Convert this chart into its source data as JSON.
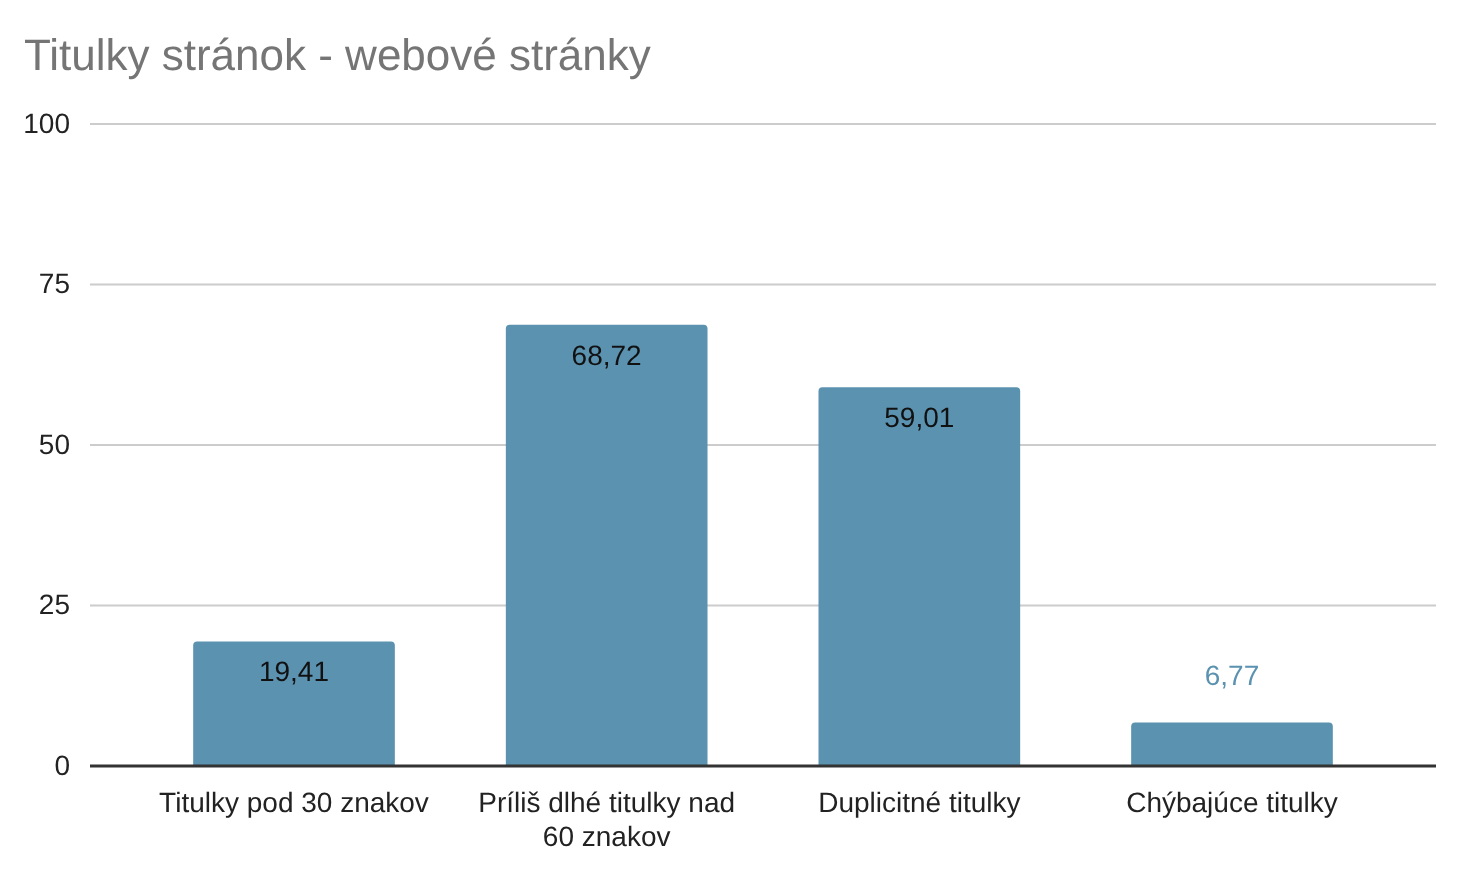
{
  "chart_data": {
    "type": "bar",
    "title": "Titulky stránok - webové stránky",
    "categories": [
      "Titulky pod 30 znakov",
      "Príliš dlhé titulky nad 60 znakov",
      "Duplicitné titulky",
      "Chýbajúce titulky"
    ],
    "values": [
      19.41,
      68.72,
      59.01,
      6.77
    ],
    "value_labels": [
      "19,41",
      "68,72",
      "59,01",
      "6,77"
    ],
    "color": "#5b92b0",
    "ylim": [
      0,
      100
    ],
    "yticks": [
      0,
      25,
      50,
      75,
      100
    ],
    "grid": "y"
  }
}
